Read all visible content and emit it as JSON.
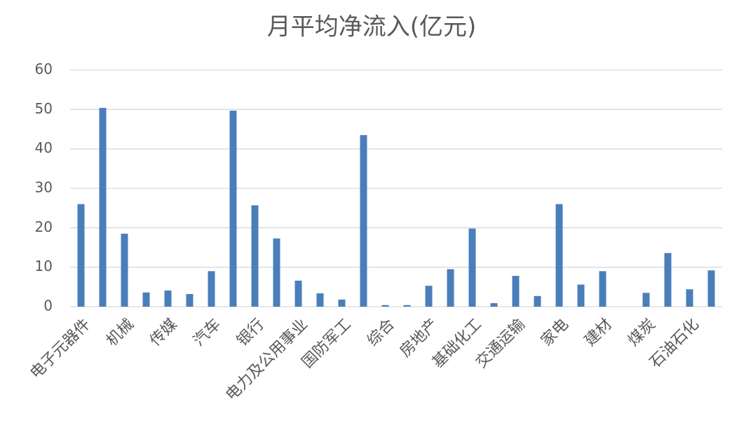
{
  "chart_data": {
    "type": "bar",
    "title": "月平均净流入(亿元)",
    "categories": [
      "电子元器件",
      null,
      "机械",
      null,
      "传媒",
      null,
      "汽车",
      null,
      "银行",
      null,
      "电力及公用事业",
      null,
      "国防军工",
      null,
      "综合",
      null,
      "房地产",
      null,
      "基础化工",
      null,
      "交通运输",
      null,
      "家电",
      null,
      "建材",
      null,
      "煤炭",
      null,
      "石油石化",
      null
    ],
    "values": [
      26,
      50.4,
      18.5,
      3.6,
      4.1,
      3.2,
      9,
      49.7,
      25.7,
      17.3,
      6.6,
      3.4,
      1.8,
      43.5,
      0.4,
      0.4,
      5.3,
      9.5,
      19.8,
      0.9,
      7.8,
      2.7,
      26,
      5.6,
      9,
      0,
      3.5,
      13.6,
      4.4,
      9.2
    ],
    "color": "#4a7ebb",
    "ylim": [
      0,
      60
    ],
    "yticks": [
      0,
      10,
      20,
      30,
      40,
      50,
      60
    ],
    "grid": true
  }
}
